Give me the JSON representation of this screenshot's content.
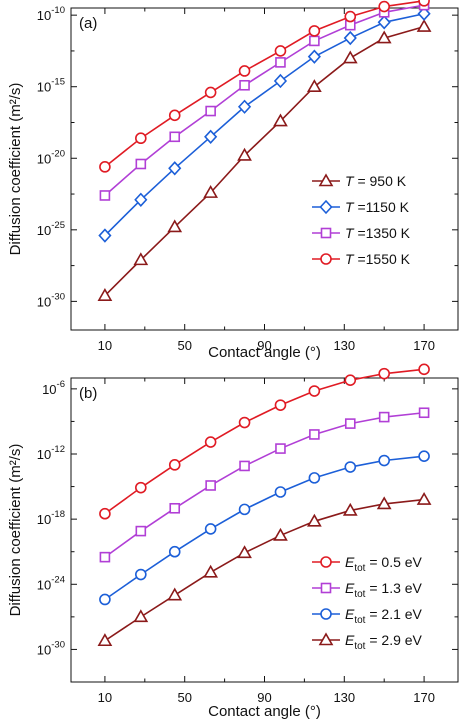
{
  "chart_data": [
    {
      "type": "line",
      "panel_label": "(a)",
      "xlabel": "Contact angle (°)",
      "ylabel": "Diffusion coefficient (m²/s)",
      "x": [
        10,
        28,
        45,
        63,
        80,
        98,
        115,
        133,
        150,
        170
      ],
      "xticks": [
        10,
        50,
        90,
        130,
        170
      ],
      "xlim": [
        -7,
        187
      ],
      "yscale": "log",
      "ylim_exp": [
        -32,
        -9.5
      ],
      "yticks_exp": [
        -10,
        -15,
        -20,
        -25,
        -30
      ],
      "legend_position": "right",
      "series": [
        {
          "name": "950 K",
          "legend_prefix": "T",
          "legend_sep": " = ",
          "color": "#8b1a1a",
          "marker": "triangle",
          "log10_values": [
            -29.6,
            -27.1,
            -24.8,
            -22.4,
            -19.8,
            -17.4,
            -15.0,
            -13.0,
            -11.6,
            -10.8
          ]
        },
        {
          "name": "1150 K",
          "legend_prefix": "T",
          "legend_sep": " =",
          "color": "#1c5fd8",
          "marker": "diamond",
          "log10_values": [
            -25.4,
            -22.9,
            -20.7,
            -18.5,
            -16.4,
            -14.6,
            -12.9,
            -11.6,
            -10.5,
            -9.9
          ]
        },
        {
          "name": "1350 K",
          "legend_prefix": "T",
          "legend_sep": " =",
          "color": "#b13fd6",
          "marker": "square",
          "log10_values": [
            -22.6,
            -20.4,
            -18.5,
            -16.7,
            -14.9,
            -13.3,
            -11.8,
            -10.7,
            -9.8,
            -9.3
          ]
        },
        {
          "name": "1550 K",
          "legend_prefix": "T",
          "legend_sep": " =",
          "color": "#e01b24",
          "marker": "circle",
          "log10_values": [
            -20.6,
            -18.6,
            -17.0,
            -15.4,
            -13.9,
            -12.5,
            -11.1,
            -10.1,
            -9.4,
            -9.0
          ]
        }
      ]
    },
    {
      "type": "line",
      "panel_label": "(b)",
      "xlabel": "Contact angle (°)",
      "ylabel": "Diffusion coefficient (m²/s)",
      "x": [
        10,
        28,
        45,
        63,
        80,
        98,
        115,
        133,
        150,
        170
      ],
      "xticks": [
        10,
        50,
        90,
        130,
        170
      ],
      "xlim": [
        -7,
        187
      ],
      "yscale": "log",
      "ylim_exp": [
        -33,
        -5
      ],
      "yticks_exp": [
        -6,
        -12,
        -18,
        -24,
        -30
      ],
      "legend_position": "bottom-right",
      "series": [
        {
          "name": "0.5 eV",
          "legend_prefix": "E",
          "legend_sub": "tot",
          "color": "#e01b24",
          "marker": "circle",
          "log10_values": [
            -17.5,
            -15.1,
            -13.0,
            -10.9,
            -9.1,
            -7.5,
            -6.2,
            -5.2,
            -4.6,
            -4.2
          ]
        },
        {
          "name": "1.3 eV",
          "legend_prefix": "E",
          "legend_sub": "tot",
          "color": "#b13fd6",
          "marker": "square",
          "log10_values": [
            -21.5,
            -19.1,
            -17.0,
            -14.9,
            -13.1,
            -11.5,
            -10.2,
            -9.2,
            -8.6,
            -8.2
          ]
        },
        {
          "name": "2.1 eV",
          "legend_prefix": "E",
          "legend_sub": "tot",
          "color": "#1c5fd8",
          "marker": "circle",
          "log10_values": [
            -25.4,
            -23.1,
            -21.0,
            -18.9,
            -17.1,
            -15.5,
            -14.2,
            -13.2,
            -12.6,
            -12.2
          ]
        },
        {
          "name": "2.9 eV",
          "legend_prefix": "E",
          "legend_sub": "tot",
          "color": "#8b1a1a",
          "marker": "triangle",
          "log10_values": [
            -29.2,
            -27.0,
            -25.0,
            -22.9,
            -21.1,
            -19.5,
            -18.2,
            -17.2,
            -16.6,
            -16.2
          ]
        }
      ]
    }
  ]
}
